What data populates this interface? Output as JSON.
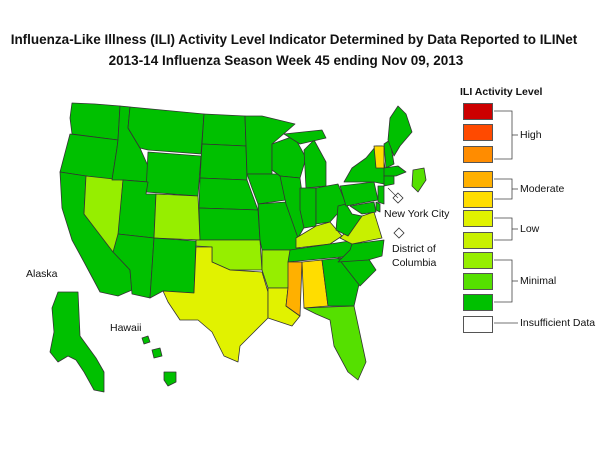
{
  "title": {
    "line1": "Influenza-Like Illness (ILI) Activity Level Indicator Determined by Data Reported to ILINet",
    "line2": "2013-14  Influenza Season Week  45 ending Nov 09, 2013"
  },
  "labels": {
    "alaska": "Alaska",
    "hawaii": "Hawaii",
    "new_york_city": "New York City",
    "dc_line1": "District of",
    "dc_line2": "Columbia"
  },
  "legend": {
    "title": "ILI Activity Level",
    "levels": [
      {
        "level": 10,
        "color": "#cc0000"
      },
      {
        "level": 9,
        "color": "#ff4a00"
      },
      {
        "level": 8,
        "color": "#ff8c00"
      },
      {
        "level": 7,
        "color": "#ffb000"
      },
      {
        "level": 6,
        "color": "#ffdd00"
      },
      {
        "level": 5,
        "color": "#e1f200"
      },
      {
        "level": 4,
        "color": "#c8f000"
      },
      {
        "level": 3,
        "color": "#96ee00"
      },
      {
        "level": 2,
        "color": "#55e000"
      },
      {
        "level": 1,
        "color": "#00c000"
      },
      {
        "level": 0,
        "color": "#ffffff"
      }
    ],
    "groups": {
      "high": "High",
      "moderate": "Moderate",
      "low": "Low",
      "minimal": "Minimal",
      "insufficient": "Insufficient Data"
    }
  },
  "colors": {
    "minimal_dark": "#00c000",
    "minimal_mid": "#55e000",
    "minimal_light": "#96ee00",
    "low_light": "#c8f000",
    "low_dark": "#e1f200",
    "moderate_light": "#ffdd00",
    "moderate_dark": "#ffb000"
  },
  "states": [
    {
      "id": "WA",
      "level": 1
    },
    {
      "id": "OR",
      "level": 1
    },
    {
      "id": "CA",
      "level": 1
    },
    {
      "id": "NV",
      "level": 3
    },
    {
      "id": "ID",
      "level": 1
    },
    {
      "id": "MT",
      "level": 1
    },
    {
      "id": "WY",
      "level": 1
    },
    {
      "id": "UT",
      "level": 1
    },
    {
      "id": "CO",
      "level": 3
    },
    {
      "id": "AZ",
      "level": 1
    },
    {
      "id": "NM",
      "level": 1
    },
    {
      "id": "ND",
      "level": 1
    },
    {
      "id": "SD",
      "level": 1
    },
    {
      "id": "NE",
      "level": 1
    },
    {
      "id": "KS",
      "level": 1
    },
    {
      "id": "OK",
      "level": 3
    },
    {
      "id": "TX",
      "level": 5
    },
    {
      "id": "MN",
      "level": 1
    },
    {
      "id": "IA",
      "level": 1
    },
    {
      "id": "MO",
      "level": 1
    },
    {
      "id": "AR",
      "level": 3
    },
    {
      "id": "LA",
      "level": 5
    },
    {
      "id": "WI",
      "level": 1
    },
    {
      "id": "IL",
      "level": 1
    },
    {
      "id": "MS",
      "level": 7
    },
    {
      "id": "MI",
      "level": 1
    },
    {
      "id": "IN",
      "level": 1
    },
    {
      "id": "KY",
      "level": 4
    },
    {
      "id": "TN",
      "level": 1
    },
    {
      "id": "AL",
      "level": 6
    },
    {
      "id": "OH",
      "level": 1
    },
    {
      "id": "WV",
      "level": 1
    },
    {
      "id": "GA",
      "level": 1
    },
    {
      "id": "FL",
      "level": 2
    },
    {
      "id": "SC",
      "level": 1
    },
    {
      "id": "NC",
      "level": 1
    },
    {
      "id": "VA",
      "level": 4
    },
    {
      "id": "PA",
      "level": 1
    },
    {
      "id": "NY",
      "level": 1
    },
    {
      "id": "VT",
      "level": 6
    },
    {
      "id": "NH",
      "level": 1
    },
    {
      "id": "ME",
      "level": 1
    },
    {
      "id": "MA",
      "level": 1
    },
    {
      "id": "RI",
      "level": 2
    },
    {
      "id": "CT",
      "level": 1
    },
    {
      "id": "NJ",
      "level": 1
    },
    {
      "id": "DE",
      "level": 1
    },
    {
      "id": "MD",
      "level": 1
    },
    {
      "id": "AK",
      "level": 1
    },
    {
      "id": "HI",
      "level": 1
    },
    {
      "id": "NYC",
      "level": 0
    },
    {
      "id": "DC",
      "level": 0
    }
  ]
}
